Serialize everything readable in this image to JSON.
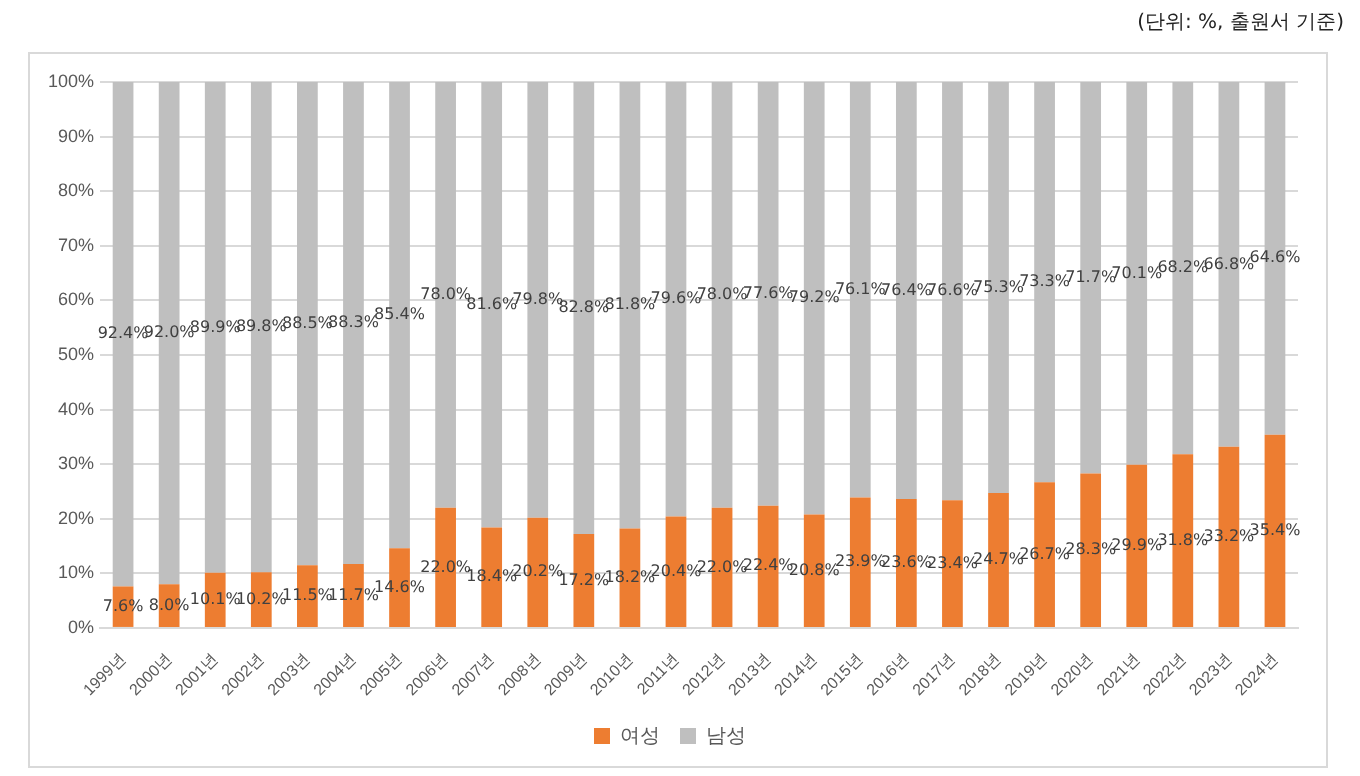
{
  "chart_data": {
    "type": "bar",
    "stacked": true,
    "categories": [
      "1999년",
      "2000년",
      "2001년",
      "2002년",
      "2003년",
      "2004년",
      "2005년",
      "2006년",
      "2007년",
      "2008년",
      "2009년",
      "2010년",
      "2011년",
      "2012년",
      "2013년",
      "2014년",
      "2015년",
      "2016년",
      "2017년",
      "2018년",
      "2019년",
      "2020년",
      "2021년",
      "2022년",
      "2023년",
      "2024년"
    ],
    "series": [
      {
        "name": "여성",
        "color": "#ed7d31",
        "values": [
          7.6,
          8.0,
          10.1,
          10.2,
          11.5,
          11.7,
          14.6,
          22.0,
          18.4,
          20.2,
          17.2,
          18.2,
          20.4,
          22.0,
          22.4,
          20.8,
          23.9,
          23.6,
          23.4,
          24.7,
          26.7,
          28.3,
          29.9,
          31.8,
          33.2,
          35.4
        ],
        "value_labels": [
          "7.6%",
          "8.0%",
          "10.1%",
          "10.2%",
          "11.5%",
          "11.7%",
          "14.6%",
          "22.0%",
          "18.4%",
          "20.2%",
          "17.2%",
          "18.2%",
          "20.4%",
          "22.0%",
          "22.4%",
          "20.8%",
          "23.9%",
          "23.6%",
          "23.4%",
          "24.7%",
          "26.7%",
          "28.3%",
          "29.9%",
          "31.8%",
          "33.2%",
          "35.4%"
        ]
      },
      {
        "name": "남성",
        "color": "#bfbfbf",
        "values": [
          92.4,
          92.0,
          89.9,
          89.8,
          88.5,
          88.3,
          85.4,
          78.0,
          81.6,
          79.8,
          82.8,
          81.8,
          79.6,
          78.0,
          77.6,
          79.2,
          76.1,
          76.4,
          76.6,
          75.3,
          73.3,
          71.7,
          70.1,
          68.2,
          66.8,
          64.6
        ],
        "value_labels": [
          "92.4%",
          "92.0%",
          "89.9%",
          "89.8%",
          "88.5%",
          "88.3%",
          "85.4%",
          "78.0%",
          "81.6%",
          "79.8%",
          "82.8%",
          "81.8%",
          "79.6%",
          "78.0%",
          "77.6%",
          "79.2%",
          "76.1%",
          "76.4%",
          "76.6%",
          "75.3%",
          "73.3%",
          "71.7%",
          "70.1%",
          "68.2%",
          "66.8%",
          "64.6%"
        ]
      }
    ],
    "ylim": [
      0,
      100
    ],
    "yticks": [
      {
        "value": 0,
        "label": "0%"
      },
      {
        "value": 10,
        "label": "10%"
      },
      {
        "value": 20,
        "label": "20%"
      },
      {
        "value": 30,
        "label": "30%"
      },
      {
        "value": 40,
        "label": "40%"
      },
      {
        "value": 50,
        "label": "50%"
      },
      {
        "value": 60,
        "label": "60%"
      },
      {
        "value": 70,
        "label": "70%"
      },
      {
        "value": 80,
        "label": "80%"
      },
      {
        "value": 90,
        "label": "90%"
      },
      {
        "value": 100,
        "label": "100%"
      }
    ],
    "grid": "y",
    "legend": "bottom",
    "annotations": [
      "(단위: %, 출원서 기준)"
    ]
  }
}
